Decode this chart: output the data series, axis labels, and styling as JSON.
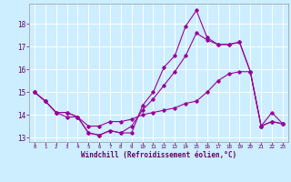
{
  "xlabel": "Windchill (Refroidissement éolien,°C)",
  "background_color": "#cceeff",
  "grid_color": "#ffffff",
  "line_color": "#990099",
  "x": [
    0,
    1,
    2,
    3,
    4,
    5,
    6,
    7,
    8,
    9,
    10,
    11,
    12,
    13,
    14,
    15,
    16,
    17,
    18,
    19,
    20,
    21,
    22,
    23
  ],
  "line1": [
    15.0,
    14.6,
    14.1,
    13.9,
    13.9,
    13.2,
    13.1,
    13.3,
    13.2,
    13.2,
    14.4,
    15.0,
    16.1,
    16.6,
    17.9,
    18.6,
    17.4,
    17.1,
    17.1,
    17.2,
    15.9,
    13.5,
    13.7,
    13.6
  ],
  "line2": [
    15.0,
    14.6,
    14.1,
    14.1,
    13.9,
    13.5,
    13.5,
    13.7,
    13.7,
    13.8,
    14.0,
    14.1,
    14.2,
    14.3,
    14.5,
    14.6,
    15.0,
    15.5,
    15.8,
    15.9,
    15.9,
    13.5,
    13.7,
    13.6
  ],
  "line3": [
    15.0,
    14.6,
    14.1,
    14.1,
    13.9,
    13.2,
    13.1,
    13.3,
    13.2,
    13.5,
    14.2,
    14.7,
    15.3,
    15.9,
    16.6,
    17.6,
    17.3,
    17.1,
    17.1,
    17.2,
    15.9,
    13.5,
    14.1,
    13.6
  ],
  "ylim": [
    12.8,
    18.9
  ],
  "yticks": [
    13,
    14,
    15,
    16,
    17,
    18
  ],
  "xticks": [
    0,
    1,
    2,
    3,
    4,
    5,
    6,
    7,
    8,
    9,
    10,
    11,
    12,
    13,
    14,
    15,
    16,
    17,
    18,
    19,
    20,
    21,
    22,
    23
  ]
}
